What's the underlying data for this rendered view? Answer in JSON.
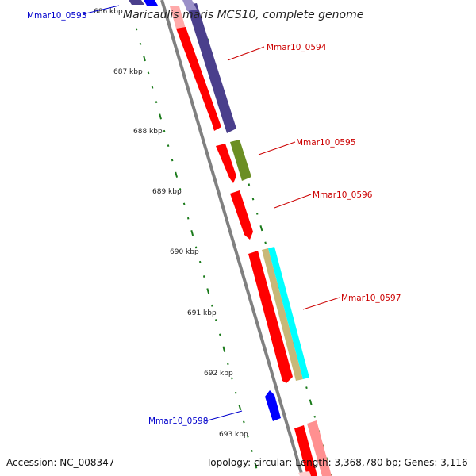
{
  "title": "Maricaulis maris MCS10, complete genome",
  "footer": {
    "accession": "Accession: NC_008347",
    "topology": "Topology: circular; Length: 3,368,780 bp; Genes: 3,116"
  },
  "ticks": [
    "686 kbp",
    "687 kbp",
    "688 kbp",
    "689 kbp",
    "690 kbp",
    "691 kbp",
    "692 kbp",
    "693 kbp"
  ],
  "gene_labels": {
    "g0593": "Mmar10_0593",
    "g0594": "Mmar10_0594",
    "g0595": "Mmar10_0595",
    "g0596": "Mmar10_0596",
    "g0597": "Mmar10_0597",
    "g0598": "Mmar10_0598"
  },
  "colors": {
    "backbone": "#808080",
    "ruler_dots": "#1a7a1a",
    "forward_label": "#cc0000",
    "reverse_label": "#0000cc",
    "cds_red": "#ff0000",
    "feature_dark_blue": "#4a3f8c",
    "feature_olive": "#6b8e23",
    "feature_cyan": "#00ffff",
    "feature_tan": "#c8b878",
    "feature_blue": "#0000ff"
  }
}
